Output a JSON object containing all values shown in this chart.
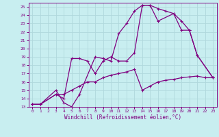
{
  "xlabel": "Windchill (Refroidissement éolien,°C)",
  "bg_color": "#c8eef0",
  "grid_color": "#b0d8dc",
  "line_color": "#800080",
  "xlim": [
    -0.5,
    23.5
  ],
  "ylim": [
    13,
    25.5
  ],
  "xticks": [
    0,
    1,
    2,
    3,
    4,
    5,
    6,
    7,
    8,
    9,
    10,
    11,
    12,
    13,
    14,
    15,
    16,
    17,
    18,
    19,
    20,
    21,
    22,
    23
  ],
  "yticks": [
    13,
    14,
    15,
    16,
    17,
    18,
    19,
    20,
    21,
    22,
    23,
    24,
    25
  ],
  "line1_x": [
    0,
    1,
    3,
    4,
    5,
    6,
    8,
    9,
    10,
    11,
    12,
    13,
    14,
    15,
    16,
    17,
    18,
    19,
    20,
    21,
    23
  ],
  "line1_y": [
    13.3,
    13.3,
    15.0,
    13.5,
    13.0,
    14.5,
    19.0,
    18.8,
    18.5,
    21.8,
    23.0,
    24.5,
    25.2,
    25.2,
    24.8,
    24.5,
    24.2,
    23.3,
    22.2,
    19.2,
    16.5
  ],
  "line2_x": [
    0,
    1,
    3,
    4,
    5,
    6,
    7,
    8,
    9,
    10,
    11,
    12,
    13,
    14,
    15,
    16,
    18,
    19,
    20,
    21,
    23
  ],
  "line2_y": [
    13.3,
    13.3,
    14.5,
    14.0,
    18.8,
    18.8,
    18.5,
    17.0,
    18.5,
    19.0,
    18.5,
    18.5,
    19.5,
    25.2,
    25.2,
    23.3,
    24.2,
    22.2,
    22.2,
    19.2,
    16.5
  ],
  "line3_x": [
    0,
    1,
    3,
    4,
    5,
    6,
    7,
    8,
    9,
    10,
    11,
    12,
    13,
    14,
    15,
    16,
    17,
    18,
    19,
    20,
    21,
    22,
    23
  ],
  "line3_y": [
    13.3,
    13.3,
    14.5,
    14.5,
    15.0,
    15.5,
    16.0,
    16.0,
    16.5,
    16.8,
    17.0,
    17.2,
    17.5,
    15.0,
    15.5,
    16.0,
    16.2,
    16.3,
    16.5,
    16.6,
    16.7,
    16.5,
    16.5
  ]
}
